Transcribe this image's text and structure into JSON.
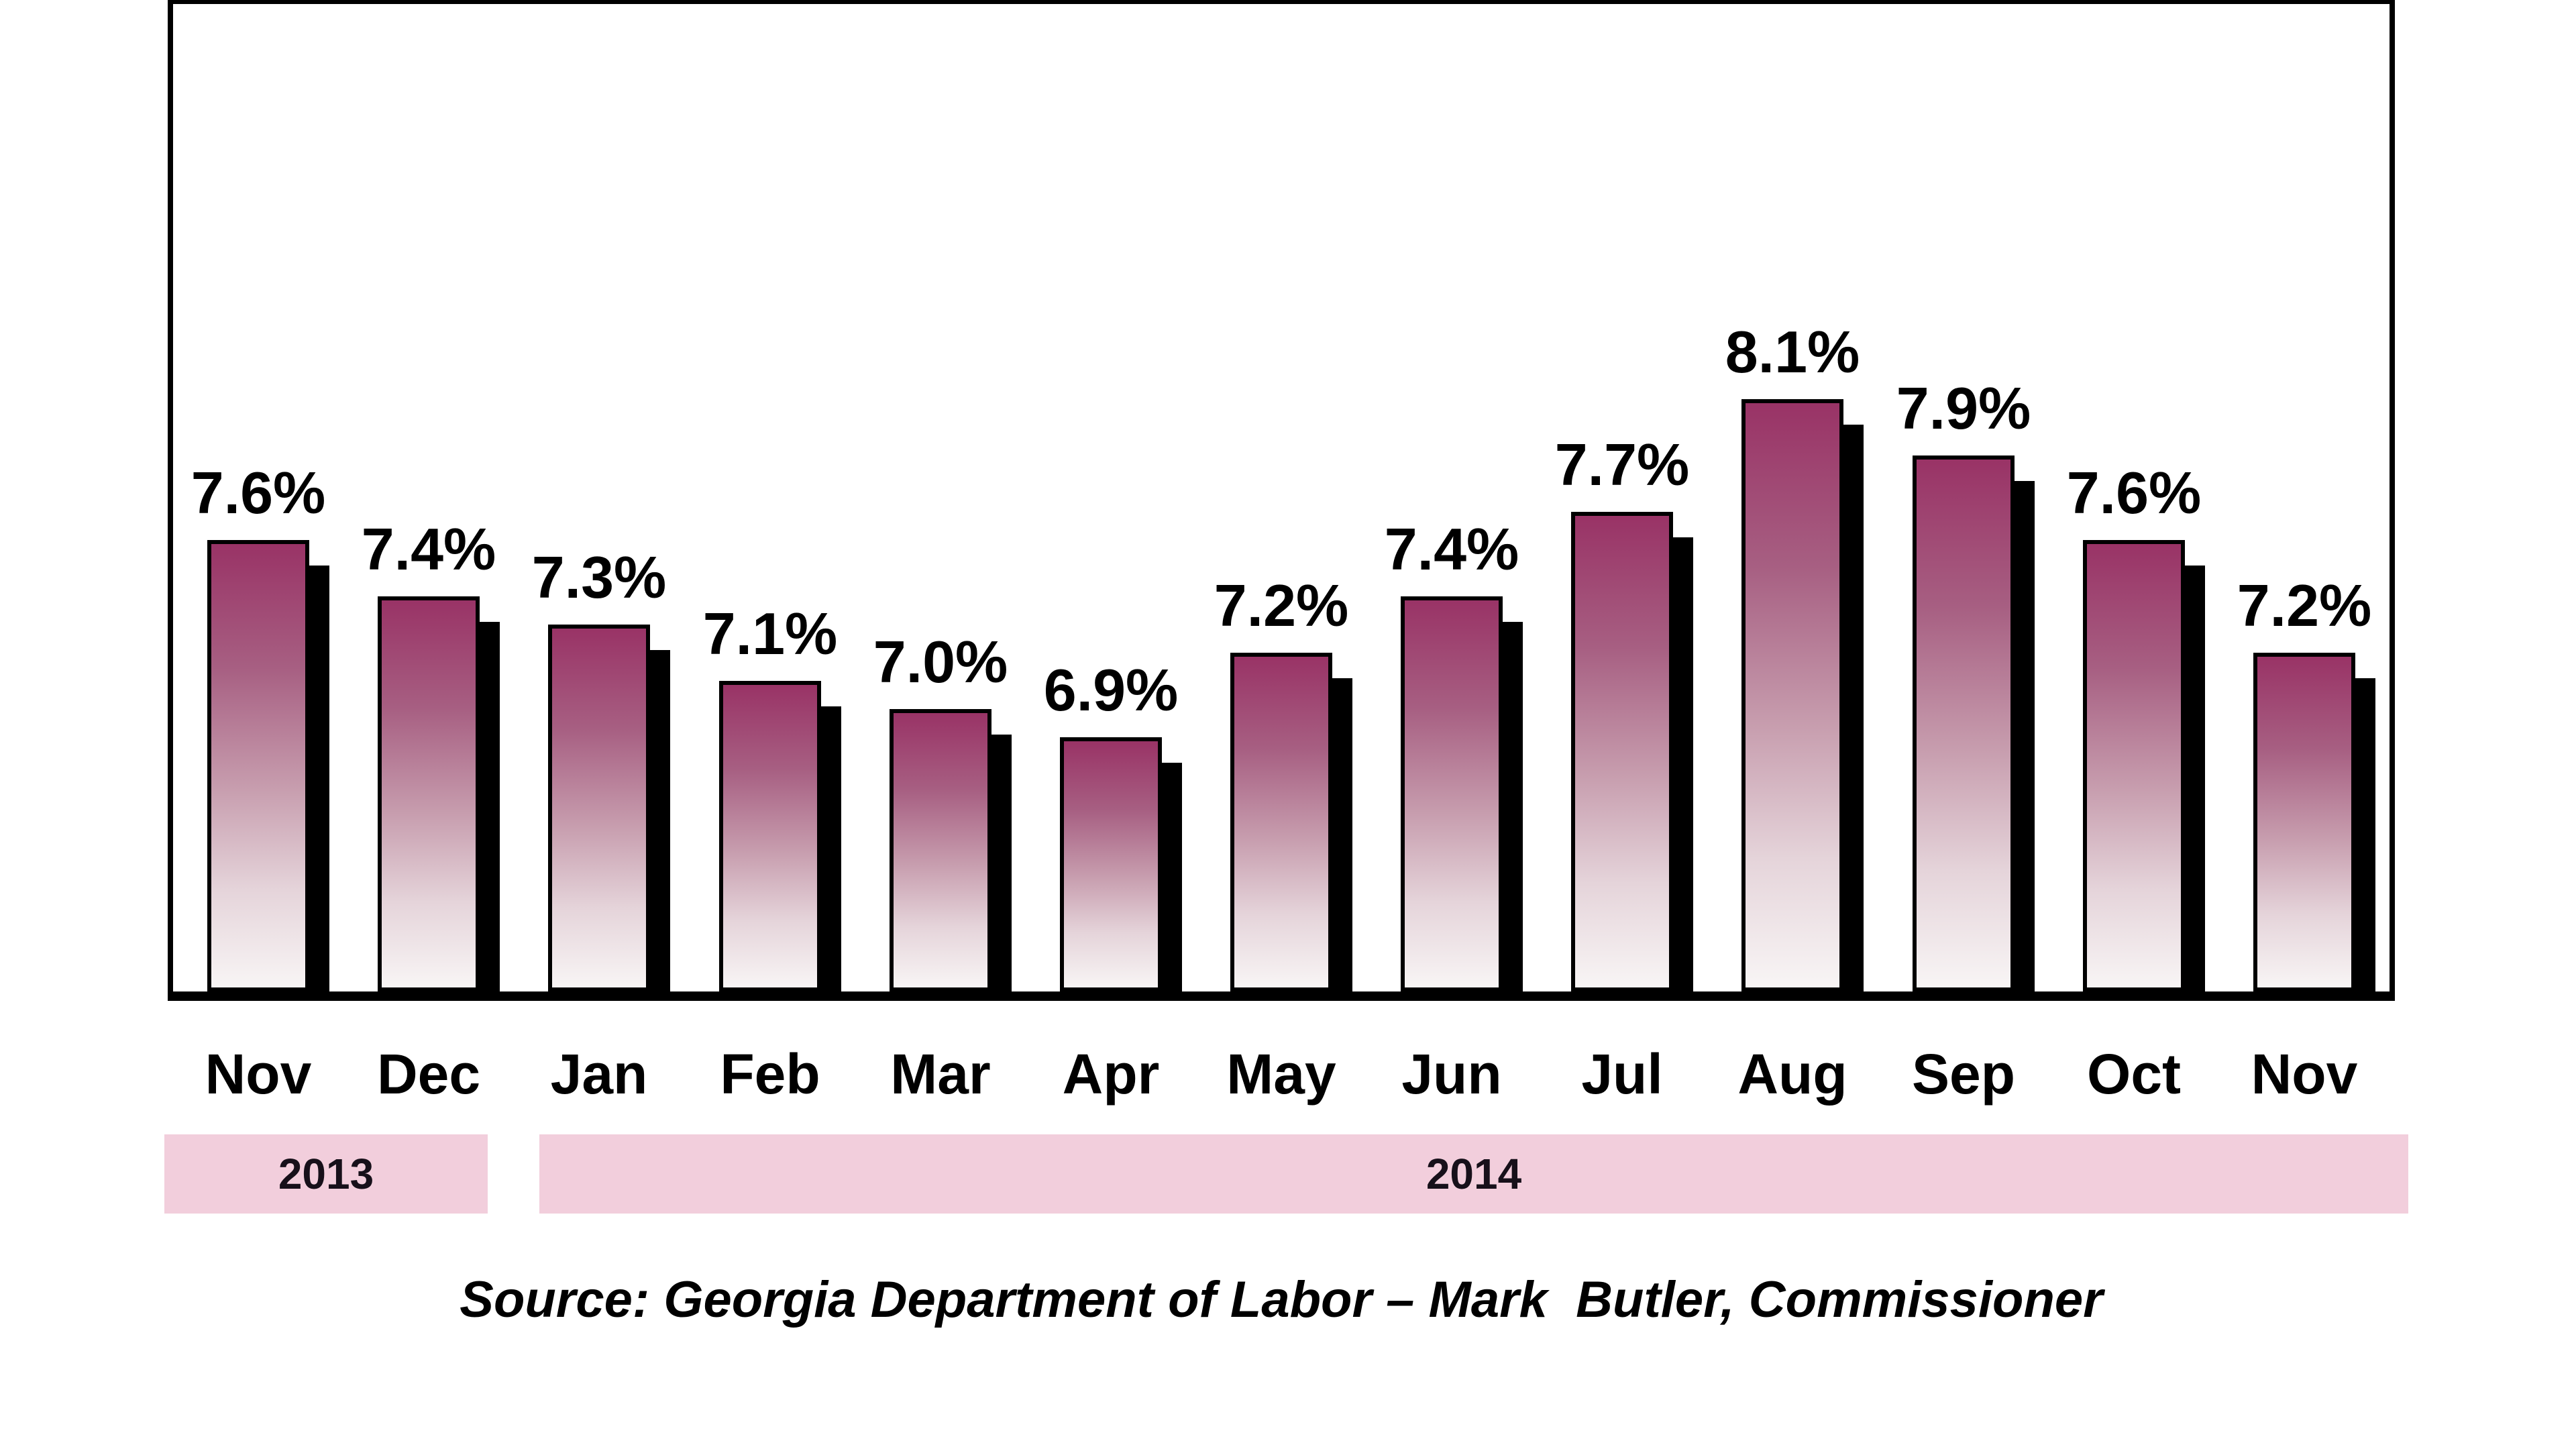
{
  "chart_data": {
    "type": "bar",
    "categories": [
      "Nov",
      "Dec",
      "Jan",
      "Feb",
      "Mar",
      "Apr",
      "May",
      "Jun",
      "Jul",
      "Aug",
      "Sep",
      "Oct",
      "Nov"
    ],
    "values": [
      7.6,
      7.4,
      7.3,
      7.1,
      7.0,
      6.9,
      7.2,
      7.4,
      7.7,
      8.1,
      7.9,
      7.6,
      7.2
    ],
    "bar_labels": [
      "7.6%",
      "7.4%",
      "7.3%",
      "7.1%",
      "7.0%",
      "6.9%",
      "7.2%",
      "7.4%",
      "7.7%",
      "8.1%",
      "7.9%",
      "7.6%",
      "7.2%"
    ],
    "unit": "%",
    "ylim": [
      6.0,
      9.5
    ],
    "grid": false,
    "legend_position": "none",
    "year_bands": [
      {
        "label": "2013",
        "start_index": 0,
        "end_index": 1
      },
      {
        "label": "2014",
        "start_index": 2,
        "end_index": 12
      }
    ]
  },
  "source_note": "Source: Georgia Department of Labor – Mark  Butler, Commissioner",
  "colors": {
    "background": "#FFFFFF",
    "axis": "#000000",
    "bar_outline": "#000000",
    "bar_shadow": "#000000",
    "bar_gradient_top": "#993366",
    "bar_gradient_mid": "#C79DAE",
    "bar_gradient_bottom": "#F8F5F5",
    "year_band_bg": "#F2CEDC",
    "text": "#000000"
  }
}
